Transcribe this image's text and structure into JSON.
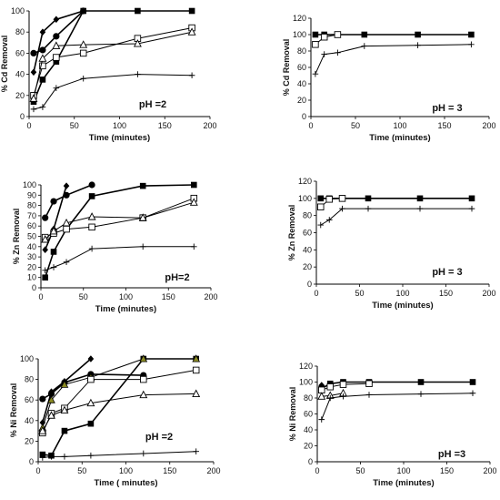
{
  "chart_data": [
    {
      "type": "line",
      "panel": "cd-ph2",
      "ylabel": "% Cd  Removal",
      "xlabel": "Time (minutes)",
      "annotation": "pH =2",
      "xlim": [
        0,
        200
      ],
      "ylim": [
        0,
        100
      ],
      "xticks": [
        "0",
        "50",
        "100",
        "150",
        "200"
      ],
      "yticks": [
        "0",
        "20",
        "40",
        "60",
        "80",
        "100"
      ],
      "series": [
        {
          "marker": "square",
          "x": [
            5,
            15,
            30,
            60,
            120,
            180
          ],
          "y": [
            14,
            35,
            52,
            100,
            100,
            100
          ]
        },
        {
          "marker": "circle",
          "x": [
            5,
            15,
            30,
            60
          ],
          "y": [
            60,
            63,
            76,
            100
          ]
        },
        {
          "marker": "diamond",
          "x": [
            5,
            15,
            30,
            60
          ],
          "y": [
            42,
            80,
            92,
            100
          ]
        },
        {
          "marker": "open-square",
          "x": [
            5,
            15,
            30,
            60,
            120,
            180
          ],
          "y": [
            20,
            48,
            56,
            60,
            74,
            84
          ]
        },
        {
          "marker": "open-triangle",
          "x": [
            5,
            15,
            30,
            60,
            120,
            180
          ],
          "y": [
            17,
            55,
            67,
            68,
            69,
            80
          ]
        },
        {
          "marker": "plus",
          "x": [
            5,
            15,
            30,
            60,
            120,
            180
          ],
          "y": [
            7,
            9,
            27,
            36,
            40,
            39
          ]
        }
      ]
    },
    {
      "type": "line",
      "panel": "cd-ph3",
      "ylabel": "% Cd  Removal",
      "xlabel": "Time (minutes)",
      "annotation": "pH = 3",
      "xlim": [
        0,
        200
      ],
      "ylim": [
        0,
        120
      ],
      "xticks": [
        "0",
        "50",
        "100",
        "150",
        "200"
      ],
      "yticks": [
        "0",
        "20",
        "40",
        "60",
        "80",
        "100",
        "120"
      ],
      "series": [
        {
          "marker": "square",
          "x": [
            5,
            15,
            30,
            60,
            120,
            180
          ],
          "y": [
            100,
            100,
            100,
            100,
            100,
            100
          ]
        },
        {
          "marker": "open-square",
          "x": [
            5,
            15,
            30
          ],
          "y": [
            88,
            97,
            100
          ]
        },
        {
          "marker": "plus",
          "x": [
            5,
            15,
            30,
            60,
            120,
            180
          ],
          "y": [
            52,
            76,
            78,
            86,
            87,
            88
          ]
        }
      ]
    },
    {
      "type": "line",
      "panel": "zn-ph2",
      "ylabel": "% Zn  Removal",
      "xlabel": "Time (minutes)",
      "annotation": "pH=2",
      "xlim": [
        0,
        200
      ],
      "ylim": [
        0,
        100
      ],
      "xticks": [
        "0",
        "50",
        "100",
        "150",
        "200"
      ],
      "yticks": [
        "0",
        "10",
        "20",
        "30",
        "40",
        "50",
        "60",
        "70",
        "80",
        "90",
        "100"
      ],
      "series": [
        {
          "marker": "square",
          "x": [
            5,
            15,
            30,
            60,
            120,
            180
          ],
          "y": [
            10,
            35,
            57,
            89,
            99,
            100
          ]
        },
        {
          "marker": "circle",
          "x": [
            5,
            15,
            30,
            60
          ],
          "y": [
            68,
            84,
            90,
            100
          ]
        },
        {
          "marker": "diamond",
          "x": [
            5,
            15,
            30
          ],
          "y": [
            37,
            57,
            99
          ]
        },
        {
          "marker": "open-square",
          "x": [
            5,
            15,
            30,
            60,
            120,
            180
          ],
          "y": [
            49,
            53,
            57,
            59,
            68,
            87
          ]
        },
        {
          "marker": "open-triangle",
          "x": [
            5,
            15,
            30,
            60,
            120,
            180
          ],
          "y": [
            47,
            55,
            63,
            69,
            68,
            83
          ]
        },
        {
          "marker": "plus",
          "x": [
            5,
            15,
            30,
            60,
            120,
            180
          ],
          "y": [
            17,
            20,
            25,
            38,
            40,
            40
          ]
        }
      ]
    },
    {
      "type": "line",
      "panel": "zn-ph3",
      "ylabel": "% Zn  Removal",
      "xlabel": "Time (minutes)",
      "annotation": "pH = 3",
      "xlim": [
        0,
        200
      ],
      "ylim": [
        0,
        120
      ],
      "xticks": [
        "0",
        "50",
        "100",
        "150",
        "200"
      ],
      "yticks": [
        "0",
        "20",
        "40",
        "60",
        "80",
        "100",
        "120"
      ],
      "series": [
        {
          "marker": "square",
          "x": [
            5,
            15,
            30,
            60,
            120,
            180
          ],
          "y": [
            100,
            100,
            100,
            100,
            100,
            100
          ]
        },
        {
          "marker": "open-square",
          "x": [
            5,
            15,
            30
          ],
          "y": [
            90,
            99,
            100
          ]
        },
        {
          "marker": "plus",
          "x": [
            5,
            15,
            30,
            60,
            120,
            180
          ],
          "y": [
            69,
            75,
            88,
            88,
            88,
            88
          ]
        }
      ]
    },
    {
      "type": "line",
      "panel": "ni-ph2",
      "ylabel": "% Ni  Removal",
      "xlabel": "Time ( minutes)",
      "annotation": "pH =2",
      "xlim": [
        0,
        200
      ],
      "ylim": [
        0,
        100
      ],
      "xticks": [
        "0",
        "50",
        "100",
        "150",
        "200"
      ],
      "yticks": [
        "0",
        "20",
        "40",
        "60",
        "80",
        "100"
      ],
      "series": [
        {
          "marker": "square",
          "x": [
            5,
            15,
            30,
            60,
            120,
            180
          ],
          "y": [
            7,
            6,
            30,
            37,
            100,
            100
          ]
        },
        {
          "marker": "circle",
          "x": [
            5,
            15,
            30,
            60,
            120
          ],
          "y": [
            61,
            66,
            77,
            85,
            84
          ]
        },
        {
          "marker": "diamond",
          "x": [
            5,
            15,
            30,
            60
          ],
          "y": [
            38,
            68,
            78,
            100
          ]
        },
        {
          "marker": "filled-triangle",
          "x": [
            5,
            15,
            30,
            60,
            120,
            180
          ],
          "y": [
            33,
            60,
            75,
            82,
            100,
            100
          ]
        },
        {
          "marker": "open-square",
          "x": [
            5,
            15,
            30,
            60,
            120,
            180
          ],
          "y": [
            28,
            47,
            52,
            80,
            80,
            89
          ]
        },
        {
          "marker": "open-triangle",
          "x": [
            5,
            15,
            30,
            60,
            120,
            180
          ],
          "y": [
            30,
            45,
            50,
            57,
            65,
            66
          ]
        },
        {
          "marker": "plus",
          "x": [
            5,
            15,
            30,
            60,
            120,
            180
          ],
          "y": [
            4,
            5,
            5,
            6,
            8,
            10
          ]
        }
      ]
    },
    {
      "type": "line",
      "panel": "ni-ph3",
      "ylabel": "% Ni  Removal",
      "xlabel": "Time (minutes)",
      "annotation": "pH =3",
      "xlim": [
        0,
        200
      ],
      "ylim": [
        0,
        120
      ],
      "xticks": [
        "0",
        "50",
        "100",
        "150",
        "200"
      ],
      "yticks": [
        "0",
        "20",
        "40",
        "60",
        "80",
        "100",
        "120"
      ],
      "series": [
        {
          "marker": "square",
          "x": [
            5,
            15,
            30,
            60,
            120,
            180
          ],
          "y": [
            92,
            98,
            100,
            100,
            100,
            100
          ]
        },
        {
          "marker": "diamond",
          "x": [
            5
          ],
          "y": [
            96
          ]
        },
        {
          "marker": "open-square",
          "x": [
            5,
            15,
            30,
            60
          ],
          "y": [
            90,
            94,
            97,
            98
          ]
        },
        {
          "marker": "open-triangle",
          "x": [
            5,
            15,
            30
          ],
          "y": [
            82,
            83,
            86
          ]
        },
        {
          "marker": "plus",
          "x": [
            5,
            15,
            30,
            60,
            120,
            180
          ],
          "y": [
            53,
            80,
            82,
            84,
            85,
            86
          ]
        }
      ]
    }
  ]
}
